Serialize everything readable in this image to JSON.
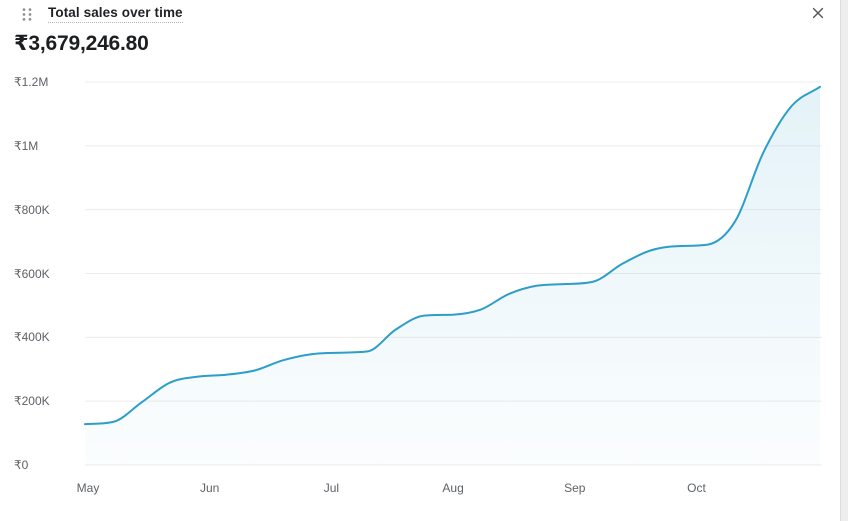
{
  "widget": {
    "title": "Total sales over time",
    "total_value": "₹3,679,246.80",
    "icons": {
      "drag_handle": "drag-handle-icon",
      "close": "close-icon"
    }
  },
  "chart_data": {
    "type": "line",
    "title": "Total sales over time",
    "total_label": "₹3,679,246.80",
    "x_tick_labels": [
      "May",
      "Jun",
      "Jul",
      "Aug",
      "Sep",
      "Oct"
    ],
    "y_tick_labels": [
      "₹1.2M",
      "₹1M",
      "₹800K",
      "₹600K",
      "₹400K",
      "₹200K",
      "₹0"
    ],
    "ylim": [
      0,
      1200000
    ],
    "xlabel": "",
    "ylabel": "",
    "grid": true,
    "legend": false,
    "line_color": "#2c9ec7",
    "grid_color": "#ececec",
    "area_tint_color": "#2c9ec7",
    "series": [
      {
        "name": "Total sales",
        "x_range": "weekly points, May through end of October",
        "values": [
          128000,
          135000,
          196000,
          258000,
          277000,
          283000,
          296000,
          328000,
          347000,
          352000,
          356000,
          425000,
          468000,
          471000,
          487000,
          536000,
          562000,
          567000,
          575000,
          630000,
          672000,
          686000,
          690000,
          764000,
          980000,
          1125000,
          1185000
        ]
      }
    ]
  }
}
